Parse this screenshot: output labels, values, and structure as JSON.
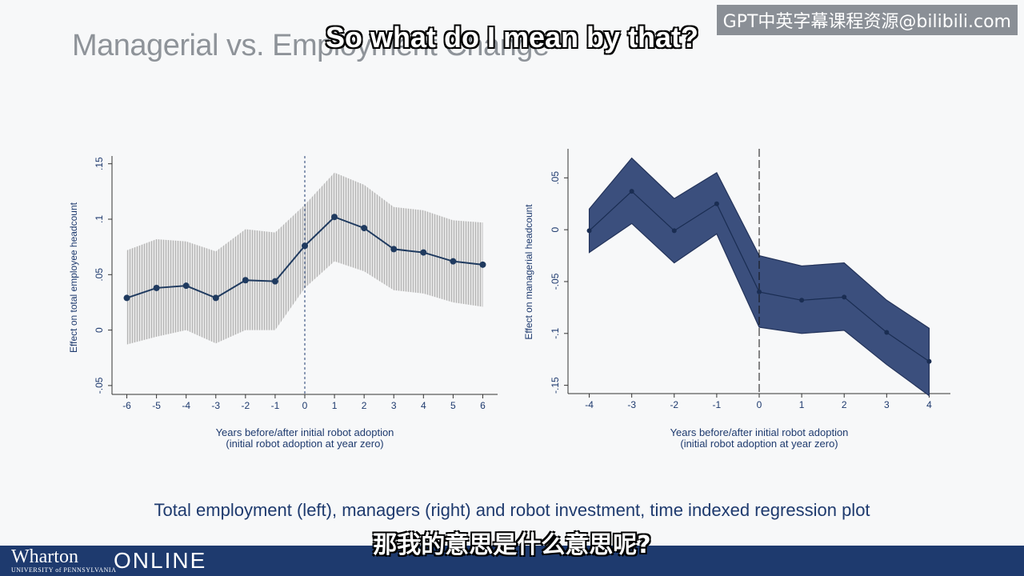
{
  "slide": {
    "title": "Managerial vs. Employment Change",
    "caption": "Total employment (left), managers (right) and robot investment, time indexed regression plot"
  },
  "overlay": {
    "watermark": "GPT中英字幕课程资源@bilibili.com",
    "subtitle_en": "So what do I mean by that?",
    "subtitle_zh": "那我的意思是什么意思呢?"
  },
  "footer": {
    "brand_name": "Wharton",
    "brand_sub": "UNIVERSITY of PENNSYLVANIA",
    "brand_online": "ONLINE",
    "bar_color": "#1e3a6e"
  },
  "chart_data": [
    {
      "type": "line",
      "ylabel": "Effect on total employee headcount",
      "xlabel": "Years before/after initial robot adoption",
      "xlabel2": "(initial robot adoption at year zero)",
      "x": [
        -6,
        -5,
        -4,
        -3,
        -2,
        -1,
        0,
        1,
        2,
        3,
        4,
        5,
        6
      ],
      "x_tick_labels": [
        "-6",
        "-5",
        "-4",
        "-3",
        "-2",
        "-1",
        "0",
        "1",
        "2",
        "3",
        "4",
        "5",
        "6"
      ],
      "y_ticks": [
        -0.05,
        0,
        0.05,
        0.1,
        0.15
      ],
      "y_tick_labels": [
        "-.05",
        "0",
        ".05",
        ".1",
        ".15"
      ],
      "xlim": [
        -6.5,
        6.5
      ],
      "ylim": [
        -0.058,
        0.157
      ],
      "values": [
        0.029,
        0.038,
        0.04,
        0.029,
        0.045,
        0.044,
        0.076,
        0.102,
        0.092,
        0.073,
        0.07,
        0.062,
        0.059
      ],
      "ci_upper": [
        0.072,
        0.082,
        0.08,
        0.071,
        0.091,
        0.088,
        0.113,
        0.142,
        0.131,
        0.111,
        0.108,
        0.099,
        0.097
      ],
      "ci_lower": [
        -0.013,
        -0.006,
        0.0,
        -0.012,
        0.0,
        0.0,
        0.038,
        0.062,
        0.053,
        0.036,
        0.033,
        0.025,
        0.021
      ],
      "reference_x": 0,
      "band_style": "hatched",
      "line_color": "#1f3a5f",
      "band_color": "#c8c8c8"
    },
    {
      "type": "line",
      "ylabel": "Effect on managerial headcount",
      "xlabel": "Years before/after initial robot adoption",
      "xlabel2": "(initial robot adoption at year zero)",
      "x": [
        -4,
        -3,
        -2,
        -1,
        0,
        1,
        2,
        3,
        4
      ],
      "x_tick_labels": [
        "-4",
        "-3",
        "-2",
        "-1",
        "0",
        "1",
        "2",
        "3",
        "4"
      ],
      "y_ticks": [
        -0.15,
        -0.1,
        -0.05,
        0,
        0.05
      ],
      "y_tick_labels": [
        "-.15",
        "-.1",
        "-.05",
        "0",
        ".05"
      ],
      "xlim": [
        -4.5,
        4.5
      ],
      "ylim": [
        -0.158,
        0.078
      ],
      "values": [
        -0.001,
        0.037,
        -0.001,
        0.025,
        -0.06,
        -0.068,
        -0.065,
        -0.099,
        -0.127
      ],
      "ci_upper": [
        0.02,
        0.069,
        0.03,
        0.055,
        -0.025,
        -0.035,
        -0.032,
        -0.068,
        -0.095
      ],
      "ci_lower": [
        -0.022,
        0.006,
        -0.032,
        -0.004,
        -0.094,
        -0.1,
        -0.097,
        -0.13,
        -0.16
      ],
      "reference_x": 0,
      "band_style": "solid",
      "line_color": "#1f3a5f",
      "band_color": "#3b4f7d"
    }
  ]
}
